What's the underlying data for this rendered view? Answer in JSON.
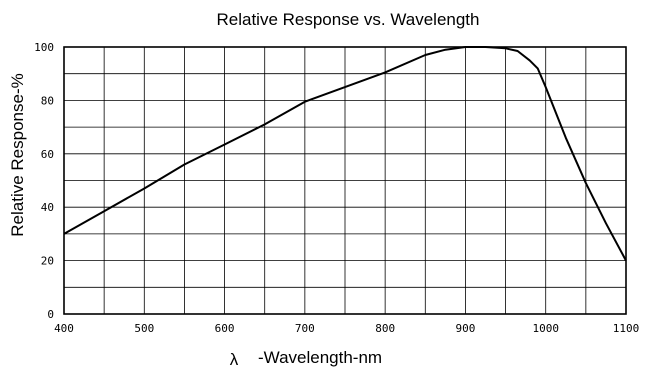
{
  "chart_data": {
    "type": "line",
    "title": "Relative Response vs. Wavelength",
    "xlabel_symbol": "λ",
    "xlabel": "-Wavelength-nm",
    "ylabel": "Relative Response-%",
    "xlim": [
      400,
      1100
    ],
    "ylim": [
      0,
      100
    ],
    "x_ticks": [
      400,
      500,
      600,
      700,
      800,
      900,
      1000,
      1100
    ],
    "y_ticks": [
      0,
      20,
      40,
      60,
      80,
      100
    ],
    "x_minor_step": 50,
    "y_minor_step": 10,
    "grid": true,
    "series": [
      {
        "x": [
          400,
          450,
          500,
          550,
          600,
          650,
          700,
          750,
          800,
          850,
          875,
          900,
          925,
          950,
          965,
          980,
          990,
          1000,
          1025,
          1050,
          1075,
          1100
        ],
        "y": [
          30,
          38.5,
          47,
          56,
          63.5,
          71,
          79.5,
          85,
          90.5,
          97,
          99,
          100,
          100,
          99.5,
          98.5,
          95,
          92,
          85,
          66,
          49,
          34,
          20
        ]
      }
    ]
  }
}
